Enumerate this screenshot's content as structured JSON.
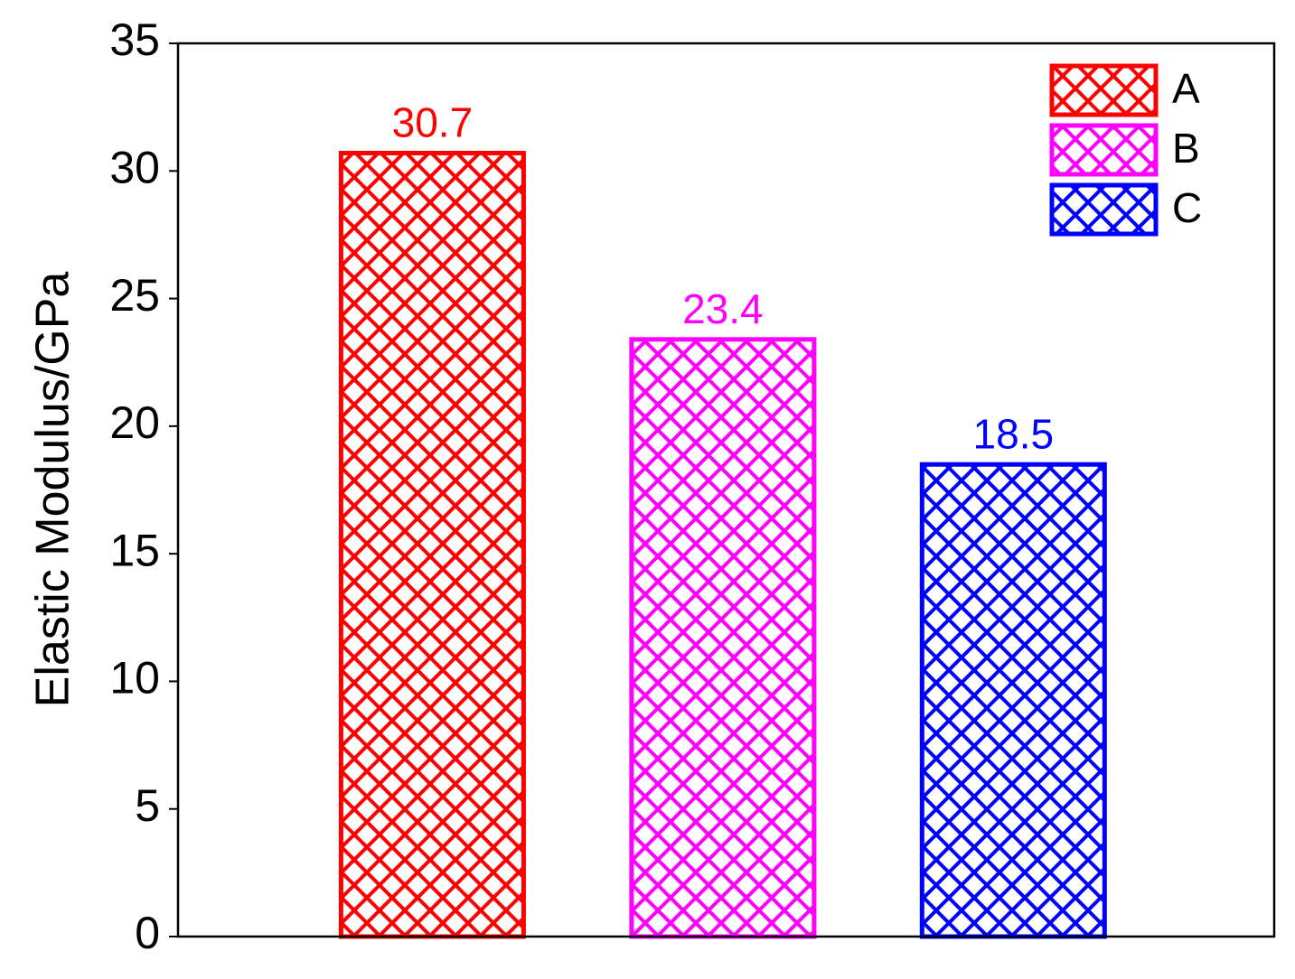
{
  "chart_data": {
    "type": "bar",
    "y_label": "Elastic Modulus/GPa",
    "series": [
      {
        "name": "A",
        "color": "#ff0000",
        "values": [
          30.7
        ]
      },
      {
        "name": "B",
        "color": "#ff00ff",
        "values": [
          23.4
        ]
      },
      {
        "name": "C",
        "color": "#0000ff",
        "values": [
          18.5
        ]
      }
    ],
    "ylim": [
      0,
      35
    ],
    "yticks": [
      0,
      5,
      10,
      15,
      20,
      25,
      30,
      35
    ],
    "grid": false,
    "legend": "upper right",
    "hatch": "crosshatch",
    "data_labels": true
  }
}
